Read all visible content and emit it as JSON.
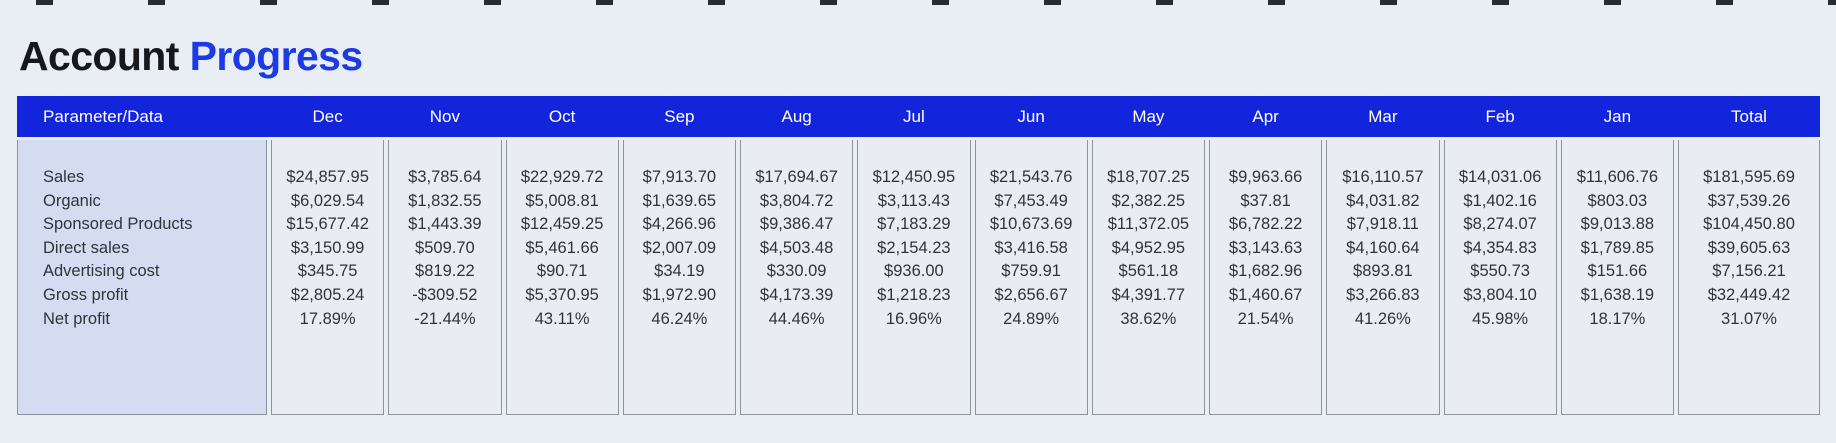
{
  "title": {
    "part1": "Account",
    "part2": "Progress"
  },
  "colors": {
    "page_bg": "#e9edf4",
    "header_bg": "#1325db",
    "title_accent": "#1d3be2",
    "label_col_bg": "#d4dcf1",
    "cell_bg": "#e9ecf1",
    "border": "#8c939e"
  },
  "table": {
    "header": [
      "Parameter/Data",
      "Dec",
      "Nov",
      "Oct",
      "Sep",
      "Aug",
      "Jul",
      "Jun",
      "May",
      "Apr",
      "Mar",
      "Feb",
      "Jan",
      "Total"
    ],
    "row_labels": [
      "Sales",
      "Organic",
      "Sponsored Products",
      "Direct sales",
      "Advertising cost",
      "Gross profit",
      "Net profit"
    ],
    "columns": [
      {
        "month": "Dec",
        "values": [
          "$24,857.95",
          "$6,029.54",
          "$15,677.42",
          "$3,150.99",
          "$345.75",
          "$2,805.24",
          "17.89%"
        ]
      },
      {
        "month": "Nov",
        "values": [
          "$3,785.64",
          "$1,832.55",
          "$1,443.39",
          "$509.70",
          "$819.22",
          "-$309.52",
          "-21.44%"
        ]
      },
      {
        "month": "Oct",
        "values": [
          "$22,929.72",
          "$5,008.81",
          "$12,459.25",
          "$5,461.66",
          "$90.71",
          "$5,370.95",
          "43.11%"
        ]
      },
      {
        "month": "Sep",
        "values": [
          "$7,913.70",
          "$1,639.65",
          "$4,266.96",
          "$2,007.09",
          "$34.19",
          "$1,972.90",
          "46.24%"
        ]
      },
      {
        "month": "Aug",
        "values": [
          "$17,694.67",
          "$3,804.72",
          "$9,386.47",
          "$4,503.48",
          "$330.09",
          "$4,173.39",
          "44.46%"
        ]
      },
      {
        "month": "Jul",
        "values": [
          "$12,450.95",
          "$3,113.43",
          "$7,183.29",
          "$2,154.23",
          "$936.00",
          "$1,218.23",
          "16.96%"
        ]
      },
      {
        "month": "Jun",
        "values": [
          "$21,543.76",
          "$7,453.49",
          "$10,673.69",
          "$3,416.58",
          "$759.91",
          "$2,656.67",
          "24.89%"
        ]
      },
      {
        "month": "May",
        "values": [
          "$18,707.25",
          "$2,382.25",
          "$11,372.05",
          "$4,952.95",
          "$561.18",
          "$4,391.77",
          "38.62%"
        ]
      },
      {
        "month": "Apr",
        "values": [
          "$9,963.66",
          "$37.81",
          "$6,782.22",
          "$3,143.63",
          "$1,682.96",
          "$1,460.67",
          "21.54%"
        ]
      },
      {
        "month": "Mar",
        "values": [
          "$16,110.57",
          "$4,031.82",
          "$7,918.11",
          "$4,160.64",
          "$893.81",
          "$3,266.83",
          "41.26%"
        ]
      },
      {
        "month": "Feb",
        "values": [
          "$14,031.06",
          "$1,402.16",
          "$8,274.07",
          "$4,354.83",
          "$550.73",
          "$3,804.10",
          "45.98%"
        ]
      },
      {
        "month": "Jan",
        "values": [
          "$11,606.76",
          "$803.03",
          "$9,013.88",
          "$1,789.85",
          "$151.66",
          "$1,638.19",
          "18.17%"
        ]
      },
      {
        "month": "Total",
        "values": [
          "$181,595.69",
          "$37,539.26",
          "$104,450.80",
          "$39,605.63",
          "$7,156.21",
          "$32,449.42",
          "31.07%"
        ]
      }
    ]
  },
  "chart_data": {
    "type": "table",
    "title": "Account Progress",
    "categories": [
      "Dec",
      "Nov",
      "Oct",
      "Sep",
      "Aug",
      "Jul",
      "Jun",
      "May",
      "Apr",
      "Mar",
      "Feb",
      "Jan",
      "Total"
    ],
    "series": [
      {
        "name": "Sales",
        "values": [
          24857.95,
          3785.64,
          22929.72,
          7913.7,
          17694.67,
          12450.95,
          21543.76,
          18707.25,
          9963.66,
          16110.57,
          14031.06,
          11606.76,
          181595.69
        ]
      },
      {
        "name": "Organic",
        "values": [
          6029.54,
          1832.55,
          5008.81,
          1639.65,
          3804.72,
          3113.43,
          7453.49,
          2382.25,
          37.81,
          4031.82,
          1402.16,
          803.03,
          37539.26
        ]
      },
      {
        "name": "Sponsored Products",
        "values": [
          15677.42,
          1443.39,
          12459.25,
          4266.96,
          9386.47,
          7183.29,
          10673.69,
          11372.05,
          6782.22,
          7918.11,
          8274.07,
          9013.88,
          104450.8
        ]
      },
      {
        "name": "Direct sales",
        "values": [
          3150.99,
          509.7,
          5461.66,
          2007.09,
          4503.48,
          2154.23,
          3416.58,
          4952.95,
          3143.63,
          4160.64,
          4354.83,
          1789.85,
          39605.63
        ]
      },
      {
        "name": "Advertising cost",
        "values": [
          345.75,
          819.22,
          90.71,
          34.19,
          330.09,
          936.0,
          759.91,
          561.18,
          1682.96,
          893.81,
          550.73,
          151.66,
          7156.21
        ]
      },
      {
        "name": "Gross profit",
        "values": [
          2805.24,
          -309.52,
          5370.95,
          1972.9,
          4173.39,
          1218.23,
          2656.67,
          4391.77,
          1460.67,
          3266.83,
          3804.1,
          1638.19,
          32449.42
        ]
      },
      {
        "name": "Net profit (%)",
        "values": [
          17.89,
          -21.44,
          43.11,
          46.24,
          44.46,
          16.96,
          24.89,
          38.62,
          21.54,
          41.26,
          45.98,
          18.17,
          31.07
        ]
      }
    ],
    "units": "USD except Net profit row (percent)",
    "notes": "Monthly account metrics table; month columns Dec..Jan plus Total; grid of bordered column cards; header row blue with white text"
  }
}
